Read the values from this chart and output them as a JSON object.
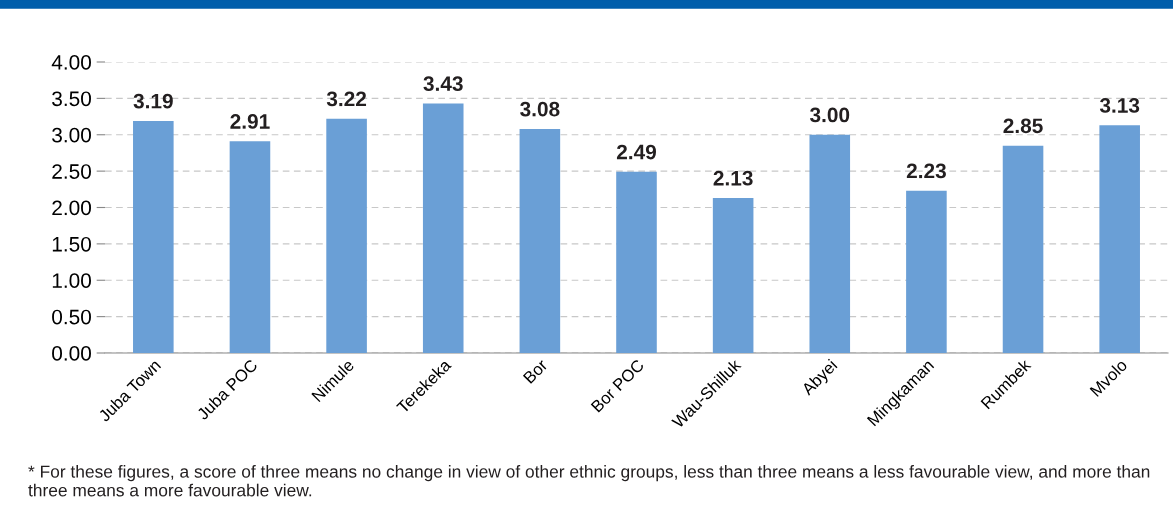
{
  "chart_data": {
    "type": "bar",
    "categories": [
      "Juba Town",
      "Juba POC",
      "Nimule",
      "Terekeka",
      "Bor",
      "Bor POC",
      "Wau-Shilluk",
      "Abyei",
      "Mingkaman",
      "Rumbek",
      "Mvolo"
    ],
    "values": [
      3.19,
      2.91,
      3.22,
      3.43,
      3.08,
      2.49,
      2.13,
      3.0,
      2.23,
      2.85,
      3.13
    ],
    "value_labels": [
      "3.19",
      "2.91",
      "3.22",
      "3.43",
      "3.08",
      "2.49",
      "2.13",
      "3.00",
      "2.23",
      "2.85",
      "3.13"
    ],
    "color": "#6a9fd6",
    "ylim": [
      0,
      4
    ],
    "yticks": [
      {
        "value": 0,
        "label": "0.00"
      },
      {
        "value": 0.5,
        "label": "0.50"
      },
      {
        "value": 1,
        "label": "1.00"
      },
      {
        "value": 1.5,
        "label": "1.50"
      },
      {
        "value": 2,
        "label": "2.00"
      },
      {
        "value": 2.5,
        "label": "2.50"
      },
      {
        "value": 3,
        "label": "3.00"
      },
      {
        "value": 3.5,
        "label": "3.50"
      },
      {
        "value": 4,
        "label": "4.00"
      }
    ],
    "grid": "y",
    "annotations": [
      "* For these figures, a score of three means no change in view of other ethnic groups, less than three means a less favourable view, and more than three means a more favourable view."
    ]
  }
}
